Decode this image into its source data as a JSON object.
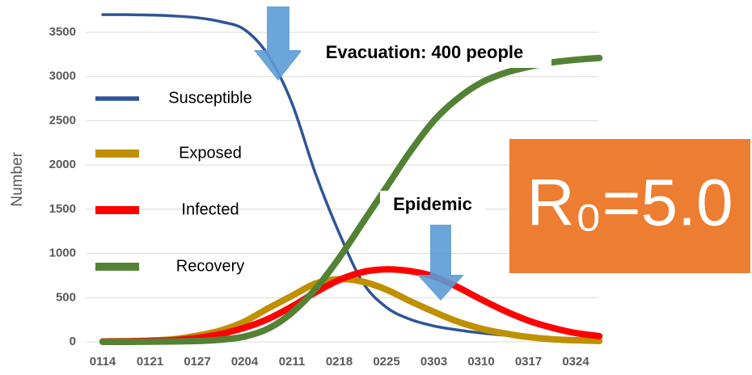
{
  "chart_data": {
    "type": "line",
    "y_label": "Number",
    "categories": [
      "0114",
      null,
      "0121",
      null,
      "0127",
      null,
      "0204",
      null,
      "0211",
      null,
      "0218",
      null,
      "0225",
      null,
      "0303",
      null,
      "0310",
      null,
      "0317",
      null,
      "0324",
      null
    ],
    "series": [
      {
        "name": "Susceptible",
        "color": "#2f5597",
        "values": [
          3700,
          3700,
          3695,
          3685,
          3665,
          3620,
          3530,
          3240,
          2700,
          1900,
          1230,
          670,
          390,
          255,
          180,
          135,
          100,
          75,
          55,
          45,
          38,
          30
        ]
      },
      {
        "name": "Exposed",
        "color": "#bf9000",
        "values": [
          5,
          8,
          15,
          30,
          70,
          130,
          230,
          380,
          520,
          660,
          710,
          680,
          590,
          460,
          340,
          230,
          150,
          95,
          55,
          30,
          18,
          10
        ]
      },
      {
        "name": "Infected",
        "color": "#ff0000",
        "values": [
          3,
          5,
          10,
          20,
          45,
          90,
          160,
          260,
          400,
          560,
          700,
          790,
          820,
          800,
          740,
          620,
          480,
          350,
          240,
          160,
          100,
          65
        ]
      },
      {
        "name": "Recovery",
        "color": "#548235",
        "values": [
          0,
          0,
          2,
          5,
          10,
          25,
          60,
          150,
          330,
          600,
          950,
          1350,
          1750,
          2150,
          2500,
          2750,
          2930,
          3040,
          3110,
          3160,
          3190,
          3210
        ]
      }
    ],
    "ylim": [
      0,
      3800
    ],
    "yticks": [
      0,
      500,
      1000,
      1500,
      2000,
      2500,
      3000,
      3500
    ],
    "grid": true,
    "annotations": [
      "Evacuation: 400 people",
      "Epidemic",
      "R₀=5.0"
    ]
  }
}
